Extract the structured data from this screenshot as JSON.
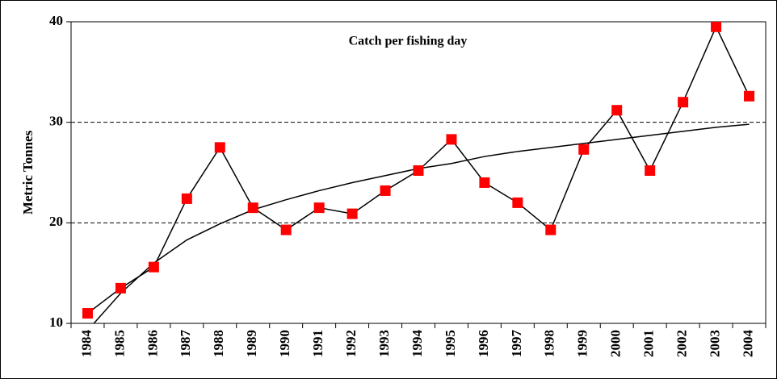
{
  "chart_data": {
    "type": "line",
    "title": "Catch per fishing day",
    "y_label": "Metric Tonnes",
    "categories": [
      "1984",
      "1985",
      "1986",
      "1987",
      "1988",
      "1989",
      "1990",
      "1991",
      "1992",
      "1993",
      "1994",
      "1995",
      "1996",
      "1997",
      "1998",
      "1999",
      "2000",
      "2001",
      "2002",
      "2003",
      "2004"
    ],
    "series": [
      {
        "color": "#ff0000",
        "values": [
          11.0,
          13.5,
          15.6,
          22.4,
          27.5,
          21.5,
          19.3,
          21.5,
          20.9,
          23.2,
          25.2,
          28.3,
          24.0,
          22.0,
          19.3,
          27.3,
          31.2,
          25.2,
          32.0,
          39.5,
          32.6
        ]
      }
    ],
    "trendline": {
      "color": "#000000",
      "values": [
        9.3,
        13.0,
        16.0,
        18.3,
        19.9,
        21.3,
        22.3,
        23.2,
        24.0,
        24.7,
        25.4,
        25.9,
        26.6,
        27.1,
        27.5,
        27.9,
        28.3,
        28.7,
        29.1,
        29.5,
        29.8
      ]
    },
    "ylim": [
      10,
      40
    ],
    "yticks": [
      10,
      20,
      30,
      40
    ],
    "grid": true
  }
}
